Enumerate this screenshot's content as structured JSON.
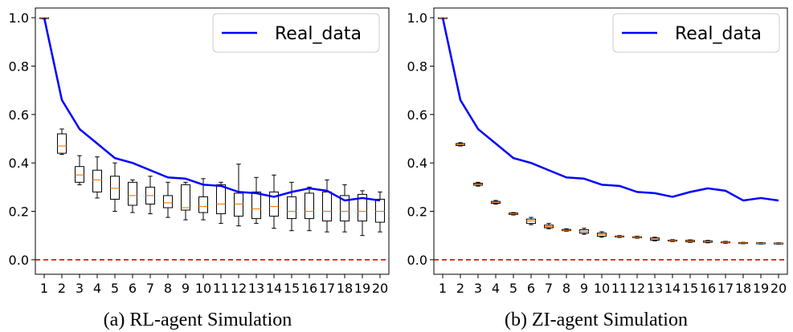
{
  "chart_data": [
    {
      "type": "box",
      "caption": "(a) RL-agent Simulation",
      "categories": [
        "1",
        "2",
        "3",
        "4",
        "5",
        "6",
        "7",
        "8",
        "9",
        "10",
        "11",
        "12",
        "13",
        "14",
        "15",
        "16",
        "17",
        "18",
        "19",
        "20"
      ],
      "yticks": [
        "0.0",
        "0.2",
        "0.4",
        "0.6",
        "0.8",
        "1.0"
      ],
      "ylim": [
        -0.06,
        1.04
      ],
      "legend": {
        "label": "Real_data",
        "placement": "top-right"
      },
      "series": [
        {
          "name": "Real_data",
          "type": "line",
          "color": "#0000ff",
          "values": [
            1.0,
            0.66,
            0.54,
            0.48,
            0.42,
            0.4,
            0.37,
            0.34,
            0.335,
            0.31,
            0.305,
            0.28,
            0.275,
            0.26,
            0.28,
            0.295,
            0.285,
            0.245,
            0.255,
            0.245
          ]
        }
      ],
      "boxes": [
        {
          "min": 0.995,
          "q1": 0.997,
          "median": 1.0,
          "q3": 1.0,
          "max": 1.0
        },
        {
          "min": 0.435,
          "q1": 0.44,
          "median": 0.47,
          "q3": 0.52,
          "max": 0.54
        },
        {
          "min": 0.31,
          "q1": 0.32,
          "median": 0.35,
          "q3": 0.385,
          "max": 0.43
        },
        {
          "min": 0.255,
          "q1": 0.28,
          "median": 0.33,
          "q3": 0.37,
          "max": 0.425
        },
        {
          "min": 0.2,
          "q1": 0.25,
          "median": 0.295,
          "q3": 0.345,
          "max": 0.4
        },
        {
          "min": 0.195,
          "q1": 0.225,
          "median": 0.265,
          "q3": 0.32,
          "max": 0.33
        },
        {
          "min": 0.19,
          "q1": 0.23,
          "median": 0.265,
          "q3": 0.3,
          "max": 0.345
        },
        {
          "min": 0.175,
          "q1": 0.215,
          "median": 0.235,
          "q3": 0.265,
          "max": 0.32
        },
        {
          "min": 0.165,
          "q1": 0.205,
          "median": 0.215,
          "q3": 0.31,
          "max": 0.32
        },
        {
          "min": 0.165,
          "q1": 0.195,
          "median": 0.22,
          "q3": 0.26,
          "max": 0.335
        },
        {
          "min": 0.15,
          "q1": 0.19,
          "median": 0.23,
          "q3": 0.31,
          "max": 0.32
        },
        {
          "min": 0.14,
          "q1": 0.18,
          "median": 0.23,
          "q3": 0.275,
          "max": 0.395
        },
        {
          "min": 0.15,
          "q1": 0.17,
          "median": 0.21,
          "q3": 0.28,
          "max": 0.34
        },
        {
          "min": 0.13,
          "q1": 0.18,
          "median": 0.22,
          "q3": 0.28,
          "max": 0.35
        },
        {
          "min": 0.12,
          "q1": 0.17,
          "median": 0.2,
          "q3": 0.26,
          "max": 0.32
        },
        {
          "min": 0.12,
          "q1": 0.17,
          "median": 0.2,
          "q3": 0.275,
          "max": 0.3
        },
        {
          "min": 0.115,
          "q1": 0.16,
          "median": 0.2,
          "q3": 0.28,
          "max": 0.33
        },
        {
          "min": 0.115,
          "q1": 0.16,
          "median": 0.2,
          "q3": 0.265,
          "max": 0.31
        },
        {
          "min": 0.1,
          "q1": 0.16,
          "median": 0.2,
          "q3": 0.27,
          "max": 0.285
        },
        {
          "min": 0.115,
          "q1": 0.155,
          "median": 0.2,
          "q3": 0.25,
          "max": 0.28
        }
      ],
      "reference_line": {
        "y": 0.0,
        "color": "#e00000",
        "style": "dashed"
      }
    },
    {
      "type": "box",
      "caption": "(b) ZI-agent Simulation",
      "categories": [
        "1",
        "2",
        "3",
        "4",
        "5",
        "6",
        "7",
        "8",
        "9",
        "10",
        "11",
        "12",
        "13",
        "14",
        "15",
        "16",
        "17",
        "18",
        "19",
        "20"
      ],
      "yticks": [
        "0.0",
        "0.2",
        "0.4",
        "0.6",
        "0.8",
        "1.0"
      ],
      "ylim": [
        -0.06,
        1.04
      ],
      "legend": {
        "label": "Real_data",
        "placement": "top-right"
      },
      "series": [
        {
          "name": "Real_data",
          "type": "line",
          "color": "#0000ff",
          "values": [
            1.0,
            0.66,
            0.54,
            0.48,
            0.42,
            0.4,
            0.37,
            0.34,
            0.335,
            0.31,
            0.305,
            0.28,
            0.275,
            0.26,
            0.28,
            0.295,
            0.285,
            0.245,
            0.255,
            0.245
          ]
        }
      ],
      "boxes": [
        {
          "min": 1.0,
          "q1": 1.0,
          "median": 1.0,
          "q3": 1.0,
          "max": 1.0
        },
        {
          "min": 0.47,
          "q1": 0.472,
          "median": 0.476,
          "q3": 0.48,
          "max": 0.484
        },
        {
          "min": 0.304,
          "q1": 0.308,
          "median": 0.312,
          "q3": 0.316,
          "max": 0.32
        },
        {
          "min": 0.23,
          "q1": 0.233,
          "median": 0.237,
          "q3": 0.241,
          "max": 0.245
        },
        {
          "min": 0.185,
          "q1": 0.187,
          "median": 0.19,
          "q3": 0.193,
          "max": 0.195
        },
        {
          "min": 0.145,
          "q1": 0.15,
          "median": 0.16,
          "q3": 0.168,
          "max": 0.175
        },
        {
          "min": 0.128,
          "q1": 0.132,
          "median": 0.137,
          "q3": 0.143,
          "max": 0.15
        },
        {
          "min": 0.118,
          "q1": 0.12,
          "median": 0.122,
          "q3": 0.125,
          "max": 0.128
        },
        {
          "min": 0.105,
          "q1": 0.11,
          "median": 0.117,
          "q3": 0.124,
          "max": 0.13
        },
        {
          "min": 0.093,
          "q1": 0.097,
          "median": 0.104,
          "q3": 0.11,
          "max": 0.116
        },
        {
          "min": 0.092,
          "q1": 0.094,
          "median": 0.096,
          "q3": 0.098,
          "max": 0.1
        },
        {
          "min": 0.089,
          "q1": 0.091,
          "median": 0.093,
          "q3": 0.095,
          "max": 0.097
        },
        {
          "min": 0.078,
          "q1": 0.081,
          "median": 0.085,
          "q3": 0.09,
          "max": 0.093
        },
        {
          "min": 0.075,
          "q1": 0.077,
          "median": 0.079,
          "q3": 0.081,
          "max": 0.083
        },
        {
          "min": 0.072,
          "q1": 0.074,
          "median": 0.077,
          "q3": 0.08,
          "max": 0.082
        },
        {
          "min": 0.07,
          "q1": 0.072,
          "median": 0.075,
          "q3": 0.078,
          "max": 0.08
        },
        {
          "min": 0.068,
          "q1": 0.07,
          "median": 0.072,
          "q3": 0.074,
          "max": 0.076
        },
        {
          "min": 0.066,
          "q1": 0.067,
          "median": 0.069,
          "q3": 0.071,
          "max": 0.072
        },
        {
          "min": 0.065,
          "q1": 0.066,
          "median": 0.068,
          "q3": 0.07,
          "max": 0.071
        },
        {
          "min": 0.064,
          "q1": 0.065,
          "median": 0.067,
          "q3": 0.069,
          "max": 0.07
        }
      ],
      "reference_line": {
        "y": 0.0,
        "color": "#e00000",
        "style": "dashed"
      }
    }
  ]
}
